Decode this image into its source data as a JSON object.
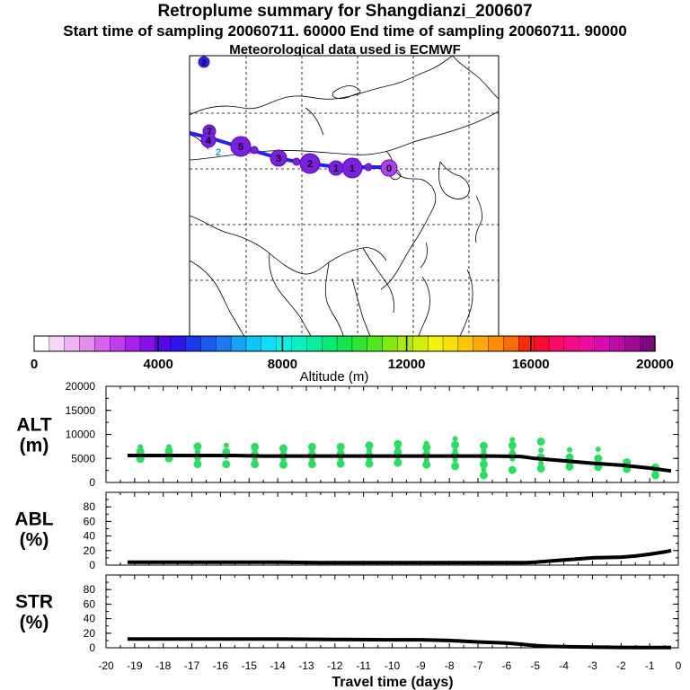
{
  "header": {
    "title": "Retroplume summary for Shangdianzi_200607",
    "subtitle": "Start time of sampling 20060711. 60000     End time of sampling 20060711. 90000",
    "met": "Meteorological data used is ECMWF"
  },
  "colors": {
    "track": "#2020ff",
    "track_point": "#7d1fe0",
    "alt_dots": "#28e060",
    "line": "#000000",
    "label2": "#00b0b0"
  },
  "map": {
    "path_labels": [
      "7",
      "4",
      "2",
      "5",
      "3",
      "2",
      "1",
      "1",
      "0"
    ],
    "outlier_label": "2"
  },
  "colorbar": {
    "colors": [
      "#ffffff",
      "#f5d8f8",
      "#eeb4f4",
      "#e48cf0",
      "#d763ec",
      "#c53deb",
      "#a722ea",
      "#8611ea",
      "#5508ea",
      "#3014ea",
      "#1c38ec",
      "#1a58f0",
      "#1a7af4",
      "#14a4f8",
      "#0cc6fa",
      "#06e2fa",
      "#06f2e4",
      "#06f2c2",
      "#06ee9e",
      "#06ea78",
      "#12e650",
      "#2ce630",
      "#52e81a",
      "#82ea10",
      "#acec0c",
      "#d2ee0a",
      "#f2f20a",
      "#f8e008",
      "#fcc606",
      "#fcaa04",
      "#fc8c04",
      "#fc6c04",
      "#fc2a08",
      "#fc0a30",
      "#fc0a64",
      "#f80a86",
      "#f00aa2",
      "#dc0aae",
      "#c00aa8",
      "#9e0a96",
      "#7a0a80"
    ],
    "tick_labels": [
      "0",
      "4000",
      "8000",
      "12000",
      "16000",
      "20000"
    ],
    "label": "Altitude  (m)"
  },
  "chart_data": [
    {
      "type": "line",
      "title": "ALT",
      "ylabel": "ALT (m)",
      "ylabel_top": "ALT",
      "ylabel_bottom": "(m)",
      "ylim": [
        0,
        20000
      ],
      "yticks": [
        "20000",
        "15000",
        "10000",
        "5000",
        "0"
      ],
      "x": [
        -19.25,
        -18.5,
        -17.5,
        -16.5,
        -15.5,
        -14.5,
        -13.5,
        -12.5,
        -11.5,
        -10.5,
        -9.5,
        -8.5,
        -7.5,
        -6.5,
        -5.5,
        -5,
        -4,
        -3,
        -2,
        -1,
        -0.25
      ],
      "y": [
        5600,
        5600,
        5600,
        5600,
        5600,
        5500,
        5500,
        5500,
        5500,
        5500,
        5500,
        5500,
        5500,
        5500,
        5400,
        5000,
        4500,
        4000,
        3600,
        3000,
        2400
      ],
      "scatter": [
        {
          "x": -18.8,
          "y": [
            4900,
            5700,
            6400,
            7400
          ]
        },
        {
          "x": -17.8,
          "y": [
            5000,
            5800,
            6500,
            7400
          ]
        },
        {
          "x": -16.8,
          "y": [
            3800,
            4600,
            5500,
            6400,
            7500
          ]
        },
        {
          "x": -15.8,
          "y": [
            3800,
            5400,
            6300,
            7700
          ]
        },
        {
          "x": -14.8,
          "y": [
            3800,
            4800,
            5800,
            6700,
            7400
          ]
        },
        {
          "x": -13.8,
          "y": [
            3700,
            4700,
            5600,
            6300,
            7100
          ]
        },
        {
          "x": -12.8,
          "y": [
            3800,
            4800,
            5700,
            6500,
            7400
          ]
        },
        {
          "x": -11.8,
          "y": [
            3900,
            5000,
            5900,
            6500,
            7400
          ]
        },
        {
          "x": -10.8,
          "y": [
            3900,
            4800,
            5600,
            6700,
            7700
          ]
        },
        {
          "x": -9.8,
          "y": [
            4100,
            5300,
            6300,
            7200,
            8000
          ]
        },
        {
          "x": -8.8,
          "y": [
            3700,
            4600,
            5800,
            6500,
            7300,
            8100
          ]
        },
        {
          "x": -7.8,
          "y": [
            3400,
            4700,
            5700,
            6600,
            7800,
            9100
          ]
        },
        {
          "x": -6.8,
          "y": [
            1500,
            2700,
            3800,
            4900,
            5500,
            6500,
            7600
          ]
        },
        {
          "x": -5.8,
          "y": [
            2600,
            4900,
            5700,
            6400,
            7700,
            8900
          ]
        },
        {
          "x": -4.8,
          "y": [
            2900,
            4000,
            5200,
            6700,
            8500
          ]
        },
        {
          "x": -3.8,
          "y": [
            3300,
            4100,
            5200,
            6800
          ]
        },
        {
          "x": -2.8,
          "y": [
            3200,
            4000,
            5000,
            6900
          ]
        },
        {
          "x": -1.8,
          "y": [
            2800,
            3600,
            4200
          ]
        },
        {
          "x": -0.8,
          "y": [
            1500,
            2200,
            3100
          ]
        }
      ]
    },
    {
      "type": "line",
      "title": "ABL",
      "ylabel": "ABL (%)",
      "ylabel_top": "ABL",
      "ylabel_bottom": "(%)",
      "ylim": [
        0,
        100
      ],
      "yticks": [
        "80",
        "60",
        "40",
        "20",
        "0"
      ],
      "x": [
        -19.25,
        -18,
        -16,
        -14,
        -12.5,
        -11,
        -9,
        -7,
        -6,
        -5.3,
        -5,
        -4.5,
        -4,
        -3.5,
        -3,
        -2.5,
        -2,
        -1.5,
        -1,
        -0.5,
        -0.25
      ],
      "y": [
        4,
        4,
        4,
        4,
        3.5,
        3.5,
        3.5,
        3.5,
        3.5,
        3.5,
        4,
        5.5,
        7,
        8.5,
        10,
        10.5,
        11,
        12.5,
        15,
        18,
        20
      ]
    },
    {
      "type": "line",
      "title": "STR",
      "ylabel": "STR (%)",
      "ylabel_top": "STR",
      "ylabel_bottom": "(%)",
      "ylim": [
        0,
        100
      ],
      "yticks": [
        "80",
        "60",
        "40",
        "20",
        "0"
      ],
      "x": [
        -19.25,
        -18,
        -16,
        -14,
        -12,
        -10,
        -9,
        -8,
        -7,
        -6,
        -5.5,
        -5,
        -4.5,
        -4,
        -3,
        -2,
        -1,
        -0.25
      ],
      "y": [
        12,
        12,
        12,
        12,
        11.5,
        11,
        11,
        10,
        8,
        6.5,
        5,
        3,
        2,
        1.5,
        1,
        0.5,
        0.3,
        0.2
      ]
    }
  ],
  "xaxis": {
    "xlim": [
      -20,
      0
    ],
    "tick_labels": [
      "-20",
      "-19",
      "-18",
      "-17",
      "-16",
      "-15",
      "-14",
      "-13",
      "-12",
      "-11",
      "-10",
      "-9",
      "-8",
      "-7",
      "-6",
      "-5",
      "-4",
      "-3",
      "-2",
      "-1",
      "0"
    ],
    "xlabel": "Travel time (days)"
  }
}
